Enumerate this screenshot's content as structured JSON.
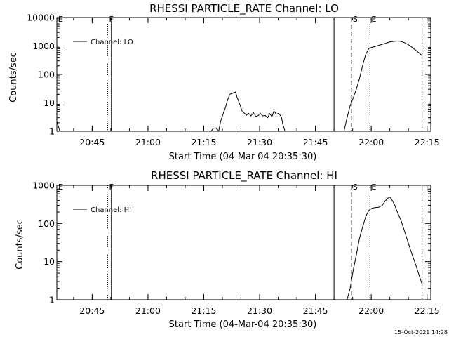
{
  "footer": {
    "timestamp": "15-Oct-2021 14:28"
  },
  "chart_data": [
    {
      "type": "line",
      "title": "RHESSI PARTICLE_RATE Channel: LO",
      "xlabel": "Start Time (04-Mar-04 20:35:30)",
      "ylabel": "Counts/sec",
      "y_scale": "log",
      "ylim": [
        1,
        10000
      ],
      "xlim": [
        "20:35:30",
        "22:16:00"
      ],
      "x_ticks": [
        "20:45",
        "21:00",
        "21:15",
        "21:30",
        "21:45",
        "22:00",
        "22:15"
      ],
      "y_ticks": [
        "1",
        "10",
        "100",
        "1000",
        "10000"
      ],
      "legend": {
        "position": "top-left",
        "entries": [
          "Channel: LO"
        ]
      },
      "markers": [
        {
          "label": "E",
          "time": "20:35:30",
          "style": "dotted"
        },
        {
          "label": "F",
          "time": "20:49:10",
          "style": "dotted"
        },
        {
          "label": "",
          "time": "20:50:10",
          "style": "solid"
        },
        {
          "label": "",
          "time": "21:50:00",
          "style": "solid"
        },
        {
          "label": "S",
          "time": "21:54:40",
          "style": "dashed"
        },
        {
          "label": "E",
          "time": "21:59:40",
          "style": "dotted"
        },
        {
          "label": "",
          "time": "22:13:40",
          "style": "dashdot"
        }
      ],
      "series": [
        {
          "name": "Channel: LO",
          "segments": [
            {
              "x": [
                "20:35:30",
                "20:36:20"
              ],
              "y": [
                2.2,
                1
              ]
            },
            {
              "x": [
                "21:16:55",
                "21:17:40",
                "21:18:20",
                "21:19:00",
                "21:19:30",
                "21:20:10",
                "21:20:50",
                "21:21:20",
                "21:22:00",
                "21:22:50",
                "21:23:30",
                "21:24:00",
                "21:24:40",
                "21:25:20",
                "21:25:50",
                "21:26:30",
                "21:27:00",
                "21:27:40",
                "21:28:20",
                "21:29:00",
                "21:29:40",
                "21:30:10",
                "21:30:50",
                "21:31:30",
                "21:32:10",
                "21:32:40",
                "21:33:20",
                "21:33:50",
                "21:34:30",
                "21:35:10",
                "21:35:50",
                "21:36:20",
                "21:36:50"
              ],
              "y": [
                1,
                1.3,
                1.3,
                1,
                2.2,
                4,
                7,
                12,
                20,
                22,
                24,
                15,
                9,
                5,
                4.4,
                3.7,
                4.3,
                3.5,
                4.5,
                3.3,
                3.6,
                4.3,
                3.5,
                3.6,
                3,
                4.2,
                3.3,
                5.2,
                4,
                4.3,
                3.2,
                1.6,
                1
              ]
            },
            {
              "x": [
                "21:52:40",
                "21:53:30",
                "21:54:20",
                "21:55:10",
                "21:56:00",
                "21:56:50",
                "21:57:40",
                "21:58:30",
                "21:59:20",
                "22:00:10",
                "22:01:00",
                "22:02:00",
                "22:03:00",
                "22:04:00",
                "22:05:00",
                "22:06:00",
                "22:07:00",
                "22:08:00",
                "22:09:00",
                "22:10:00",
                "22:11:00",
                "22:12:00",
                "22:13:00",
                "22:13:40"
              ],
              "y": [
                1,
                3,
                8,
                15,
                30,
                70,
                200,
                500,
                800,
                900,
                950,
                1050,
                1150,
                1250,
                1400,
                1450,
                1500,
                1450,
                1300,
                1100,
                900,
                700,
                550,
                450
              ]
            }
          ]
        }
      ]
    },
    {
      "type": "line",
      "title": "RHESSI PARTICLE_RATE Channel: HI",
      "xlabel": "Start Time (04-Mar-04 20:35:30)",
      "ylabel": "Counts/sec",
      "y_scale": "log",
      "ylim": [
        1,
        1000
      ],
      "xlim": [
        "20:35:30",
        "22:16:00"
      ],
      "x_ticks": [
        "20:45",
        "21:00",
        "21:15",
        "21:30",
        "21:45",
        "22:00",
        "22:15"
      ],
      "y_ticks": [
        "1",
        "10",
        "100",
        "1000"
      ],
      "legend": {
        "position": "top-left",
        "entries": [
          "Channel: HI"
        ]
      },
      "markers": [
        {
          "label": "E",
          "time": "20:35:30",
          "style": "dotted"
        },
        {
          "label": "F",
          "time": "20:49:10",
          "style": "dotted"
        },
        {
          "label": "",
          "time": "20:50:10",
          "style": "solid"
        },
        {
          "label": "",
          "time": "21:50:00",
          "style": "solid"
        },
        {
          "label": "S",
          "time": "21:54:40",
          "style": "dashed"
        },
        {
          "label": "E",
          "time": "21:59:40",
          "style": "dotted"
        },
        {
          "label": "",
          "time": "22:13:40",
          "style": "dashdot"
        }
      ],
      "series": [
        {
          "name": "Channel: HI",
          "segments": [
            {
              "x": [
                "21:53:30",
                "21:54:20",
                "21:55:10",
                "21:56:00",
                "21:56:50",
                "21:57:40",
                "21:58:30",
                "21:59:20",
                "22:00:10",
                "22:01:00",
                "22:02:00",
                "22:03:00",
                "22:03:40",
                "22:04:20",
                "22:05:00",
                "22:05:40",
                "22:06:20",
                "22:07:00",
                "22:08:00",
                "22:09:00",
                "22:10:00",
                "22:11:00",
                "22:12:00",
                "22:13:00",
                "22:13:40"
              ],
              "y": [
                1,
                2,
                6,
                15,
                40,
                80,
                150,
                220,
                250,
                260,
                265,
                300,
                380,
                450,
                500,
                400,
                300,
                200,
                120,
                60,
                30,
                15,
                8,
                4,
                2.6
              ]
            }
          ]
        }
      ]
    }
  ]
}
